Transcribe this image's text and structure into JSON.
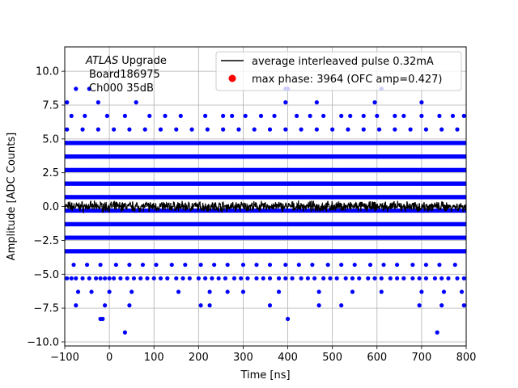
{
  "chart_data": {
    "type": "scatter",
    "xlabel": "Time [ns]",
    "ylabel": "Amplitude [ADC Counts]",
    "xlim": [
      -100,
      800
    ],
    "ylim": [
      -10.3,
      11.8
    ],
    "x_ticks": [
      -100,
      0,
      100,
      200,
      300,
      400,
      500,
      600,
      700,
      800
    ],
    "x_tick_labels": [
      "−100",
      "0",
      "100",
      "200",
      "300",
      "400",
      "500",
      "600",
      "700",
      "800"
    ],
    "y_ticks": [
      -10.0,
      -7.5,
      -5.0,
      -2.5,
      0.0,
      2.5,
      5.0,
      7.5,
      10.0
    ],
    "y_tick_labels": [
      "−10.0",
      "−7.5",
      "−5.0",
      "−2.5",
      "0.0",
      "2.5",
      "5.0",
      "7.5",
      "10.0"
    ],
    "grid": true,
    "legend_position": "top-right",
    "annotation": {
      "atlas": "ATLAS",
      "upgrade": "Upgrade",
      "board": "Board186975",
      "channel": "Ch000 35dB"
    },
    "series": [
      {
        "name": "average interleaved pulse 0.32mA",
        "type": "line",
        "color": "#000000",
        "description_levels": "noise around 0 between -0.5 and 0.5"
      },
      {
        "name": "max phase: 3964 (OFC amp=0.427)",
        "type": "scatter",
        "color": "#ff0000",
        "marker": "circle"
      },
      {
        "name": "",
        "type": "scatter",
        "color": "#0000ff",
        "marker": "circle",
        "dense_levels": [
          -3.3,
          -2.3,
          -1.3,
          -0.3,
          0.7,
          1.7,
          2.7,
          3.7,
          4.7
        ],
        "sparse_levels": [
          {
            "y": -5.3,
            "x": [
              -95,
              -85,
              -75,
              -60,
              -45,
              -30,
              -20,
              -10,
              0,
              10,
              25,
              40,
              55,
              70,
              85,
              100,
              115,
              130,
              150,
              165,
              180,
              200,
              215,
              230,
              245,
              260,
              280,
              295,
              310,
              330,
              345,
              360,
              380,
              395,
              410,
              430,
              445,
              460,
              480,
              495,
              510,
              530,
              545,
              560,
              580,
              595,
              610,
              630,
              645,
              660,
              680,
              695,
              710,
              730,
              745,
              760,
              780,
              795
            ]
          },
          {
            "y": -4.3,
            "x": [
              -80,
              -50,
              -20,
              15,
              45,
              75,
              105,
              140,
              170,
              205,
              235,
              265,
              300,
              330,
              360,
              395,
              425,
              455,
              490,
              520,
              550,
              585,
              615,
              645,
              680,
              710,
              740,
              775
            ]
          },
          {
            "y": 5.7,
            "x": [
              -95,
              -60,
              -25,
              10,
              45,
              80,
              115,
              150,
              185,
              220,
              255,
              290,
              325,
              360,
              395,
              430,
              465,
              500,
              535,
              570,
              605,
              640,
              675,
              710,
              745,
              780
            ]
          },
          {
            "y": 6.7,
            "x": [
              -85,
              -55,
              -5,
              35,
              90,
              125,
              160,
              215,
              255,
              275,
              305,
              340,
              370,
              420,
              450,
              480,
              520,
              540,
              570,
              600,
              640,
              660,
              700,
              740,
              770,
              795
            ]
          },
          {
            "y": -6.3,
            "x": [
              -70,
              -40,
              0,
              50,
              155,
              225,
              265,
              300,
              380,
              470,
              545,
              610,
              700,
              750,
              790
            ]
          },
          {
            "y": 7.7,
            "x": [
              -95,
              -25,
              60,
              395,
              465,
              595,
              700
            ]
          },
          {
            "y": 8.7,
            "x": [
              -75,
              -45,
              395,
              400,
              610
            ]
          },
          {
            "y": -7.3,
            "x": [
              -75,
              -10,
              45,
              205,
              225,
              360,
              470,
              520,
              695,
              745,
              795
            ]
          },
          {
            "y": -8.3,
            "x": [
              -20,
              -15,
              400
            ]
          },
          {
            "y": -9.3,
            "x": [
              35,
              735
            ]
          }
        ]
      }
    ]
  }
}
